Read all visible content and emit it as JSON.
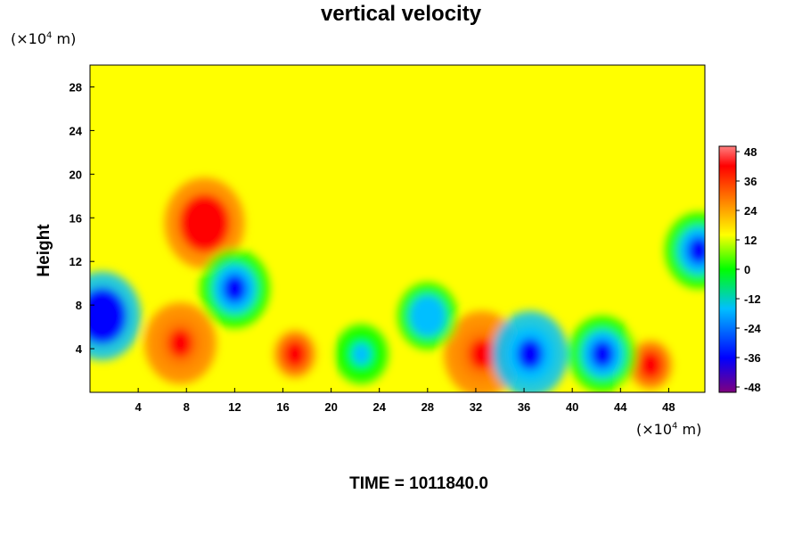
{
  "chart_data": {
    "type": "heatmap",
    "title": "vertical velocity",
    "ylabel": "Height",
    "y_unit": "(×10⁴ m)",
    "x_unit": "(×10⁴ m)",
    "x_ticks": [
      "4",
      "8",
      "12",
      "16",
      "20",
      "24",
      "28",
      "32",
      "36",
      "40",
      "44",
      "48"
    ],
    "y_ticks": [
      "4",
      "8",
      "12",
      "16",
      "20",
      "24",
      "28"
    ],
    "xlim": [
      0,
      51
    ],
    "ylim": [
      0,
      30
    ],
    "colorbar": {
      "ticks": [
        "48",
        "36",
        "24",
        "12",
        "0",
        "-12",
        "-24",
        "-36",
        "-48"
      ],
      "range": [
        -48,
        48
      ]
    },
    "colormap": [
      "#7f007f",
      "#0000ff",
      "#00bfff",
      "#00ff00",
      "#ffff00",
      "#ff8000",
      "#ff0000",
      "#ff8080"
    ],
    "background_value": 0,
    "features": [
      {
        "x": 7.5,
        "y": 4.5,
        "value": 32
      },
      {
        "x": 17,
        "y": 3.5,
        "value": 28
      },
      {
        "x": 32.5,
        "y": 3.5,
        "value": 36
      },
      {
        "x": 46.5,
        "y": 2.5,
        "value": 30
      },
      {
        "x": 9.5,
        "y": 15.5,
        "value": 40
      },
      {
        "x": 1,
        "y": 7,
        "value": -38
      },
      {
        "x": 36.5,
        "y": 3.5,
        "value": -36
      },
      {
        "x": 42.5,
        "y": 3.5,
        "value": -28
      },
      {
        "x": 28,
        "y": 7,
        "value": -20
      },
      {
        "x": 12,
        "y": 9.5,
        "value": -30
      },
      {
        "x": 50.5,
        "y": 13,
        "value": -28
      },
      {
        "x": 22.5,
        "y": 3.5,
        "value": -14
      }
    ]
  },
  "caption": {
    "time_label": "TIME = 1011840.0"
  }
}
